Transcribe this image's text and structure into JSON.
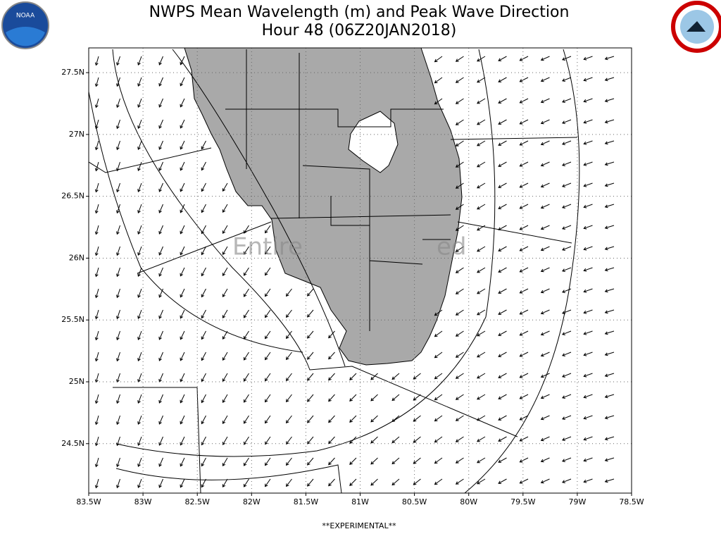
{
  "chart_data": {
    "type": "map",
    "title": "NWPS Mean Wavelength (m) and Peak Wave Direction",
    "subtitle": "Hour 48 (06Z20JAN2018)",
    "xlim": [
      -83.5,
      -78.5
    ],
    "ylim": [
      24.1,
      27.7
    ],
    "xticks": [
      {
        "value": -83.5,
        "label": "83.5W"
      },
      {
        "value": -83,
        "label": "83W"
      },
      {
        "value": -82.5,
        "label": "82.5W"
      },
      {
        "value": -82,
        "label": "82W"
      },
      {
        "value": -81.5,
        "label": "81.5W"
      },
      {
        "value": -81,
        "label": "81W"
      },
      {
        "value": -80.5,
        "label": "80.5W"
      },
      {
        "value": -80,
        "label": "80W"
      },
      {
        "value": -79.5,
        "label": "79.5W"
      },
      {
        "value": -79,
        "label": "79W"
      },
      {
        "value": -78.5,
        "label": "78.5W"
      }
    ],
    "yticks": [
      {
        "value": 24.5,
        "label": "24.5N"
      },
      {
        "value": 25,
        "label": "25N"
      },
      {
        "value": 25.5,
        "label": "25.5N"
      },
      {
        "value": 26,
        "label": "26N"
      },
      {
        "value": 26.5,
        "label": "26.5N"
      },
      {
        "value": 27,
        "label": "27N"
      },
      {
        "value": 27.5,
        "label": "27.5N"
      }
    ],
    "grid": true,
    "watermark": [
      "Entire",
      "ed"
    ],
    "footer": "**EXPERIMENTAL**"
  },
  "logos": {
    "noaa": "NOAA"
  }
}
